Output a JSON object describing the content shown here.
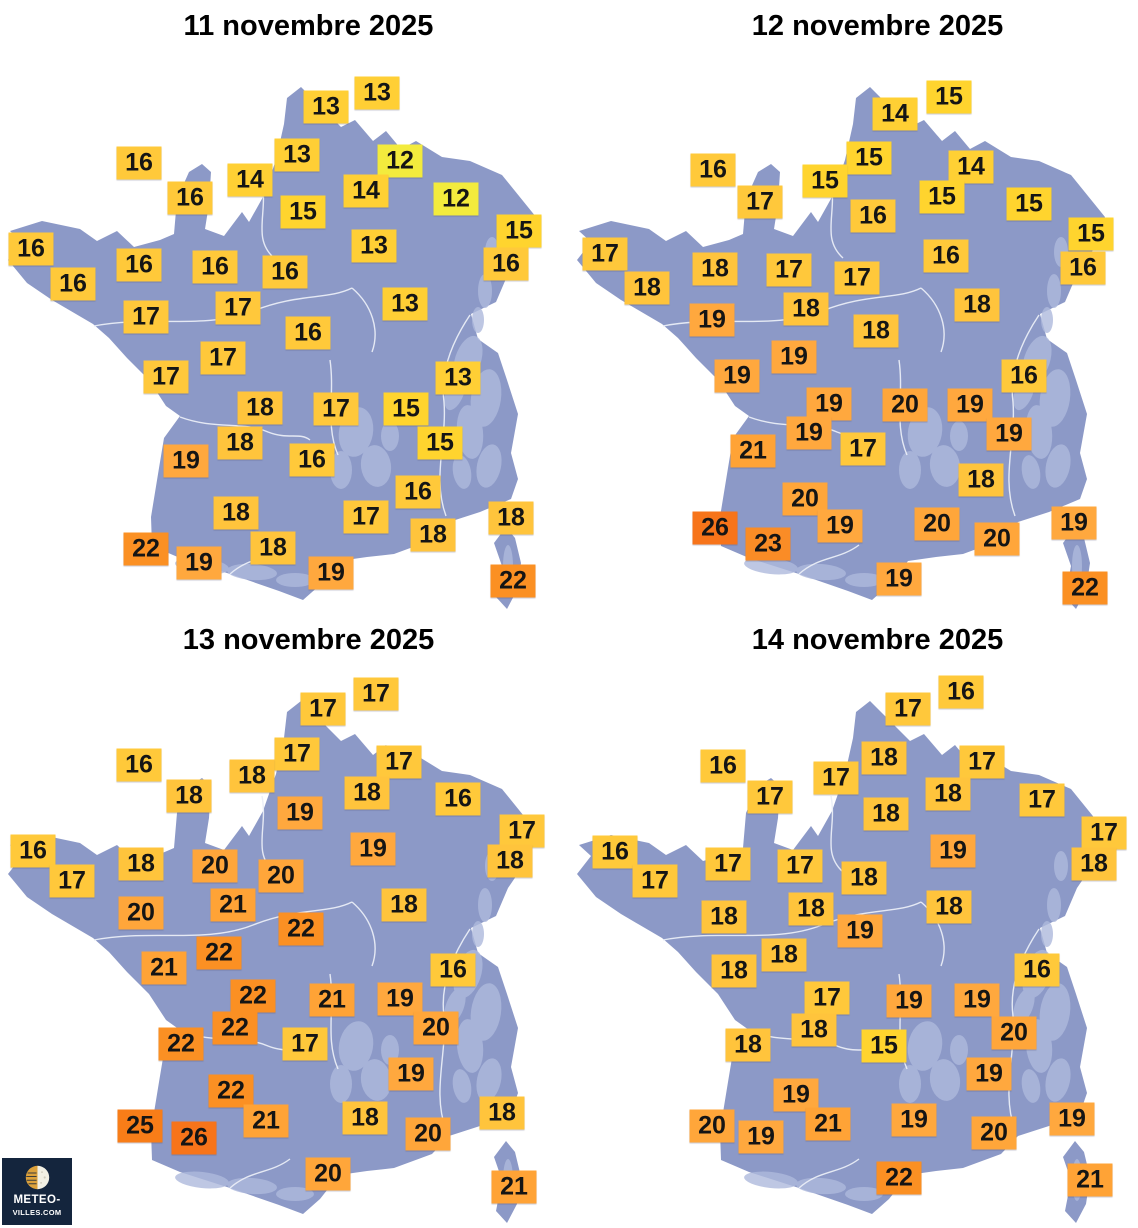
{
  "logo": {
    "line1": "METEO-",
    "line2": "VILLES.COM",
    "bg": "#14253D",
    "sun_color": "#DCA13B",
    "moon_color": "#F2F0E4"
  },
  "map_style": {
    "land": "#8C99C7",
    "relief": "#AEB9DC",
    "border": "#EAEEF7"
  },
  "color_scale": {
    "12": "#F3EB3D",
    "13": "#FFCF35",
    "14": "#FFD034",
    "15": "#FFD42E",
    "16": "#FFC93A",
    "17": "#FFC83B",
    "18": "#FFC43C",
    "19": "#FFA83E",
    "20": "#FFA63A",
    "21": "#FFA336",
    "22": "#FB9023",
    "23": "#FA8C26",
    "25": "#F87D18",
    "26": "#F7741A"
  },
  "maps": [
    {
      "title": "11 novembre 2025",
      "labels": [
        [
          13,
          326,
          107
        ],
        [
          13,
          377,
          93
        ],
        [
          16,
          139,
          163
        ],
        [
          13,
          297,
          155
        ],
        [
          12,
          400,
          161
        ],
        [
          14,
          250,
          180
        ],
        [
          14,
          366,
          191
        ],
        [
          16,
          190,
          198
        ],
        [
          15,
          303,
          212
        ],
        [
          12,
          456,
          199
        ],
        [
          15,
          519,
          231
        ],
        [
          16,
          31,
          249
        ],
        [
          16,
          139,
          265
        ],
        [
          16,
          215,
          267
        ],
        [
          16,
          285,
          272
        ],
        [
          16,
          506,
          264
        ],
        [
          16,
          73,
          284
        ],
        [
          13,
          374,
          246
        ],
        [
          13,
          405,
          304
        ],
        [
          17,
          146,
          317
        ],
        [
          17,
          238,
          308
        ],
        [
          16,
          308,
          333
        ],
        [
          17,
          223,
          358
        ],
        [
          17,
          166,
          377
        ],
        [
          13,
          458,
          378
        ],
        [
          18,
          260,
          408
        ],
        [
          17,
          336,
          409
        ],
        [
          15,
          406,
          409
        ],
        [
          18,
          240,
          443
        ],
        [
          15,
          440,
          443
        ],
        [
          19,
          186,
          461
        ],
        [
          16,
          312,
          460
        ],
        [
          16,
          418,
          492
        ],
        [
          18,
          236,
          513
        ],
        [
          22,
          146,
          549
        ],
        [
          18,
          273,
          548
        ],
        [
          17,
          366,
          517
        ],
        [
          18,
          433,
          535
        ],
        [
          18,
          511,
          518
        ],
        [
          19,
          199,
          563
        ],
        [
          19,
          331,
          573
        ],
        [
          22,
          513,
          581
        ]
      ]
    },
    {
      "title": "12 novembre 2025",
      "labels": [
        [
          15,
          380,
          97
        ],
        [
          14,
          326,
          114
        ],
        [
          16,
          144,
          170
        ],
        [
          15,
          300,
          158
        ],
        [
          15,
          256,
          181
        ],
        [
          14,
          402,
          167
        ],
        [
          17,
          191,
          202
        ],
        [
          15,
          373,
          197
        ],
        [
          15,
          460,
          204
        ],
        [
          16,
          304,
          216
        ],
        [
          15,
          522,
          234
        ],
        [
          17,
          36,
          254
        ],
        [
          16,
          377,
          256
        ],
        [
          16,
          514,
          268
        ],
        [
          18,
          146,
          269
        ],
        [
          17,
          220,
          270
        ],
        [
          18,
          78,
          288
        ],
        [
          17,
          288,
          278
        ],
        [
          18,
          237,
          309
        ],
        [
          18,
          408,
          305
        ],
        [
          19,
          143,
          320
        ],
        [
          18,
          307,
          331
        ],
        [
          19,
          225,
          357
        ],
        [
          19,
          168,
          376
        ],
        [
          16,
          455,
          376
        ],
        [
          19,
          260,
          404
        ],
        [
          20,
          336,
          405
        ],
        [
          19,
          401,
          405
        ],
        [
          19,
          240,
          433
        ],
        [
          19,
          440,
          434
        ],
        [
          21,
          184,
          451
        ],
        [
          17,
          294,
          449
        ],
        [
          18,
          412,
          480
        ],
        [
          20,
          236,
          499
        ],
        [
          26,
          146,
          528
        ],
        [
          23,
          199,
          544
        ],
        [
          19,
          271,
          526
        ],
        [
          20,
          368,
          524
        ],
        [
          20,
          428,
          539
        ],
        [
          19,
          505,
          523
        ],
        [
          19,
          330,
          579
        ],
        [
          22,
          516,
          588
        ]
      ]
    },
    {
      "title": "13 novembre 2025",
      "labels": [
        [
          17,
          376,
          80
        ],
        [
          17,
          323,
          95
        ],
        [
          17,
          297,
          140
        ],
        [
          16,
          139,
          151
        ],
        [
          18,
          252,
          162
        ],
        [
          17,
          399,
          148
        ],
        [
          18,
          189,
          182
        ],
        [
          18,
          367,
          179
        ],
        [
          16,
          458,
          185
        ],
        [
          19,
          300,
          199
        ],
        [
          17,
          522,
          217
        ],
        [
          16,
          33,
          237
        ],
        [
          19,
          373,
          235
        ],
        [
          18,
          510,
          247
        ],
        [
          18,
          141,
          250
        ],
        [
          20,
          215,
          252
        ],
        [
          17,
          72,
          267
        ],
        [
          20,
          281,
          262
        ],
        [
          21,
          233,
          291
        ],
        [
          20,
          141,
          299
        ],
        [
          22,
          301,
          315
        ],
        [
          18,
          404,
          291
        ],
        [
          22,
          219,
          339
        ],
        [
          21,
          164,
          354
        ],
        [
          16,
          453,
          356
        ],
        [
          22,
          253,
          382
        ],
        [
          21,
          332,
          386
        ],
        [
          19,
          400,
          385
        ],
        [
          22,
          235,
          414
        ],
        [
          20,
          436,
          414
        ],
        [
          22,
          181,
          430
        ],
        [
          17,
          305,
          430
        ],
        [
          19,
          411,
          460
        ],
        [
          22,
          231,
          477
        ],
        [
          25,
          140,
          512
        ],
        [
          21,
          266,
          507
        ],
        [
          18,
          365,
          504
        ],
        [
          26,
          194,
          524
        ],
        [
          20,
          428,
          520
        ],
        [
          18,
          502,
          499
        ],
        [
          20,
          328,
          560
        ],
        [
          21,
          514,
          573
        ]
      ]
    },
    {
      "title": "14 novembre 2025",
      "labels": [
        [
          16,
          392,
          78
        ],
        [
          17,
          339,
          95
        ],
        [
          18,
          315,
          144
        ],
        [
          16,
          154,
          152
        ],
        [
          17,
          267,
          164
        ],
        [
          17,
          413,
          148
        ],
        [
          17,
          201,
          183
        ],
        [
          18,
          379,
          180
        ],
        [
          17,
          473,
          186
        ],
        [
          18,
          317,
          200
        ],
        [
          17,
          535,
          219
        ],
        [
          16,
          46,
          238
        ],
        [
          19,
          384,
          237
        ],
        [
          18,
          525,
          250
        ],
        [
          17,
          159,
          250
        ],
        [
          17,
          231,
          252
        ],
        [
          17,
          86,
          267
        ],
        [
          18,
          295,
          264
        ],
        [
          18,
          155,
          303
        ],
        [
          18,
          242,
          295
        ],
        [
          19,
          291,
          317
        ],
        [
          18,
          380,
          293
        ],
        [
          18,
          215,
          341
        ],
        [
          18,
          165,
          357
        ],
        [
          16,
          468,
          356
        ],
        [
          17,
          258,
          384
        ],
        [
          19,
          340,
          387
        ],
        [
          19,
          408,
          386
        ],
        [
          18,
          245,
          416
        ],
        [
          20,
          445,
          419
        ],
        [
          18,
          179,
          431
        ],
        [
          15,
          315,
          432
        ],
        [
          19,
          420,
          460
        ],
        [
          19,
          227,
          481
        ],
        [
          20,
          143,
          512
        ],
        [
          21,
          259,
          510
        ],
        [
          19,
          345,
          506
        ],
        [
          19,
          192,
          523
        ],
        [
          20,
          425,
          519
        ],
        [
          19,
          503,
          505
        ],
        [
          22,
          330,
          564
        ],
        [
          21,
          521,
          566
        ]
      ]
    }
  ]
}
